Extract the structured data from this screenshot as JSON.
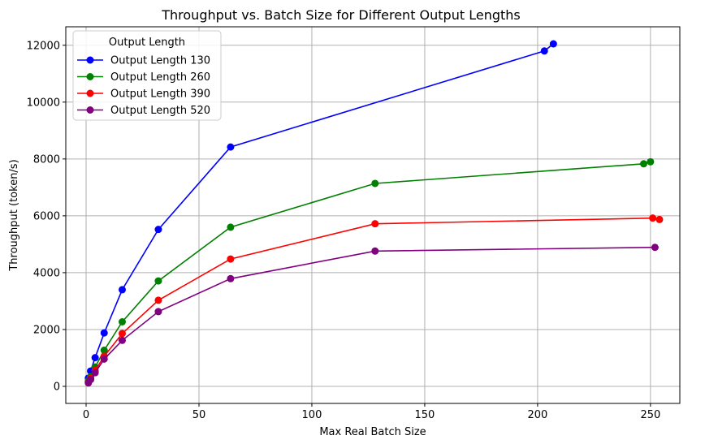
{
  "chart_data": {
    "type": "line",
    "title": "Throughput vs. Batch Size for Different Output Lengths",
    "xlabel": "Max Real Batch Size",
    "ylabel": "Throughput (token/s)",
    "xlim": [
      -9,
      263
    ],
    "ylim": [
      -600,
      12650
    ],
    "xticks": [
      0,
      50,
      100,
      150,
      200,
      250
    ],
    "yticks": [
      0,
      2000,
      4000,
      6000,
      8000,
      10000,
      12000
    ],
    "xtick_labels": [
      "0",
      "50",
      "100",
      "150",
      "200",
      "250"
    ],
    "ytick_labels": [
      "0",
      "2000",
      "4000",
      "6000",
      "8000",
      "10000",
      "12000"
    ],
    "grid": true,
    "legend": {
      "title": "Output Length",
      "placement": "top-left"
    },
    "series": [
      {
        "name": "Output Length 130",
        "color": "#0000ff",
        "x": [
          1,
          2,
          4,
          8,
          16,
          32,
          64,
          203,
          207
        ],
        "y": [
          290,
          540,
          1010,
          1880,
          3400,
          5520,
          8420,
          11800,
          12050
        ]
      },
      {
        "name": "Output Length 260",
        "color": "#008000",
        "x": [
          1,
          2,
          4,
          8,
          16,
          32,
          64,
          128,
          247,
          250
        ],
        "y": [
          190,
          340,
          680,
          1270,
          2270,
          3710,
          5600,
          7140,
          7830,
          7900
        ]
      },
      {
        "name": "Output Length 390",
        "color": "#ff0000",
        "x": [
          1,
          2,
          4,
          8,
          16,
          32,
          64,
          128,
          251,
          254
        ],
        "y": [
          150,
          280,
          560,
          1060,
          1860,
          3030,
          4480,
          5720,
          5920,
          5870
        ]
      },
      {
        "name": "Output Length 520",
        "color": "#800080",
        "x": [
          1,
          2,
          4,
          8,
          16,
          32,
          64,
          128,
          252
        ],
        "y": [
          120,
          240,
          480,
          960,
          1620,
          2630,
          3790,
          4760,
          4890
        ]
      }
    ]
  }
}
